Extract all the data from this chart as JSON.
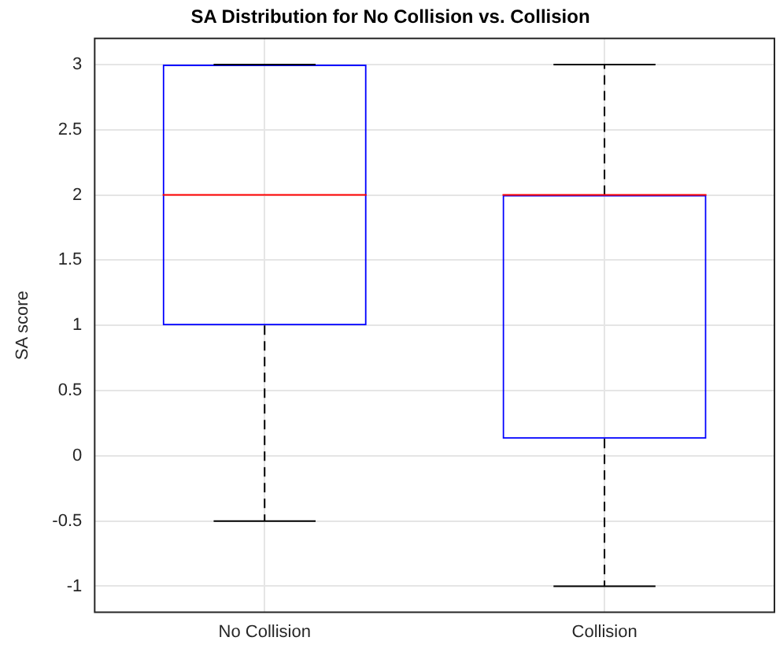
{
  "chart_data": {
    "type": "box",
    "title": "SA Distribution for No Collision vs. Collision",
    "ylabel": "SA score",
    "categories": [
      "No Collision",
      "Collision"
    ],
    "series": [
      {
        "color": "#0000ff",
        "boxes": [
          {
            "low": -0.5,
            "q1": 1,
            "median": 2,
            "q3": 3,
            "high": 3
          },
          {
            "low": -1,
            "q1": 0.13,
            "median": 2,
            "q3": 2,
            "high": 3
          }
        ]
      }
    ],
    "ylim": [
      -1.2,
      3.2
    ],
    "yticks": [
      -1,
      -0.5,
      0,
      0.5,
      1,
      1.5,
      2,
      2.5,
      3
    ],
    "grid": true,
    "legend": false
  }
}
